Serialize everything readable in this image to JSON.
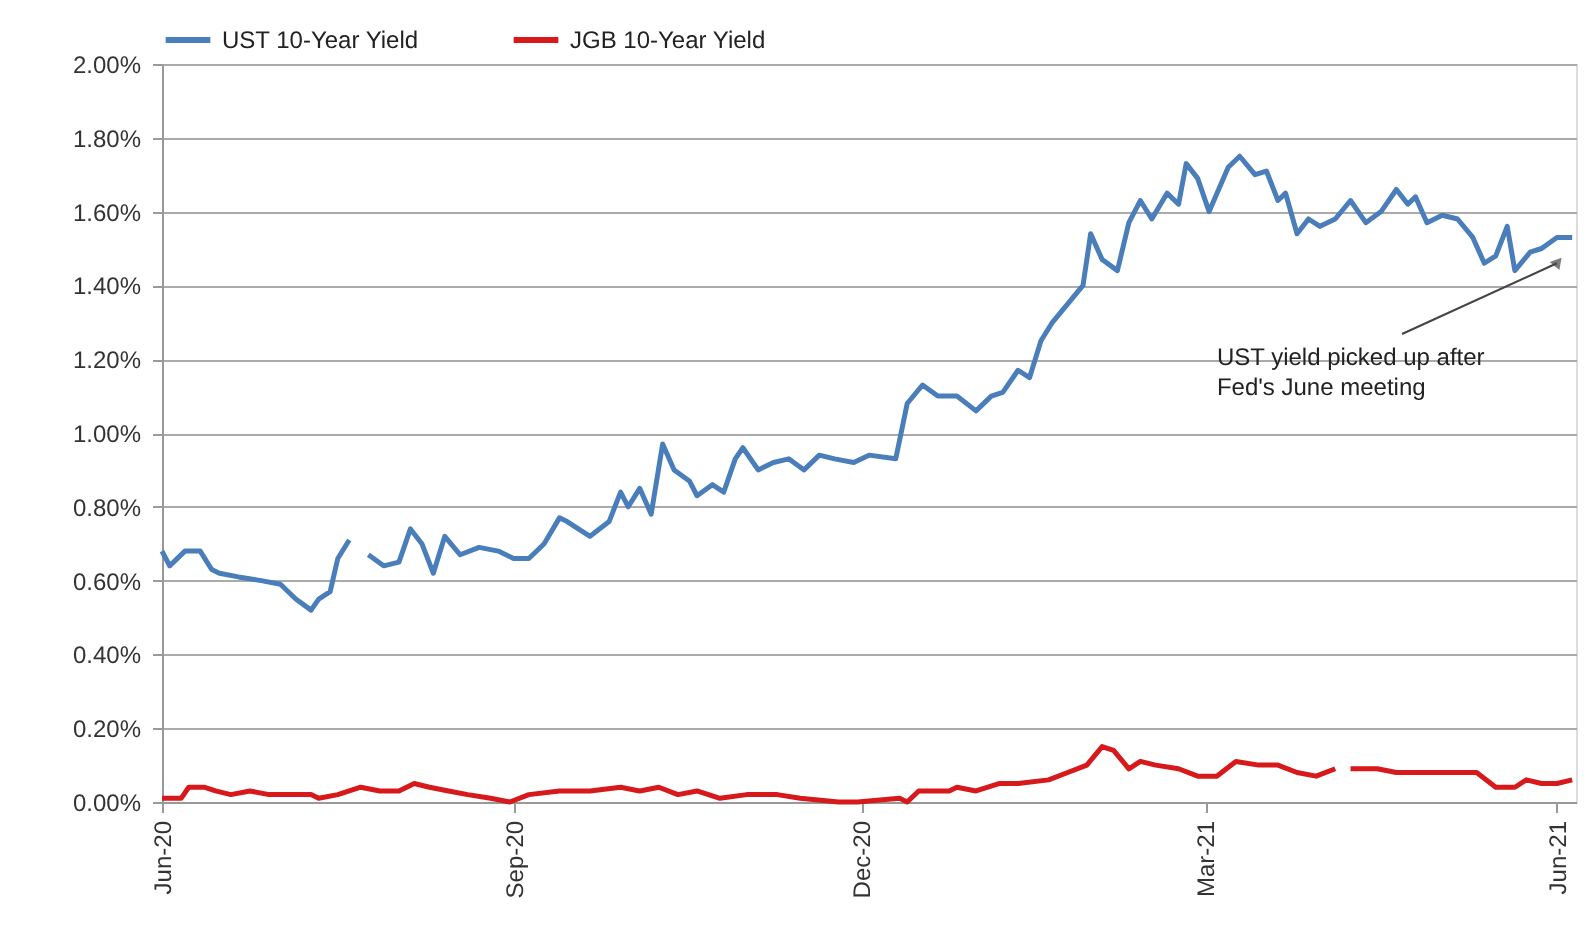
{
  "chart_data": {
    "type": "line",
    "x": [
      "2020-06-01",
      "2020-06-03",
      "2020-06-07",
      "2020-06-11",
      "2020-06-14",
      "2020-06-16",
      "2020-06-21",
      "2020-06-27",
      "2020-07-02",
      "2020-07-06",
      "2020-07-10",
      "2020-07-12",
      "2020-07-15",
      "2020-07-17",
      "2020-07-20",
      "2020-07-23",
      "2020-07-25",
      "2020-07-29",
      "2020-08-02",
      "2020-08-05",
      "2020-08-08",
      "2020-08-11",
      "2020-08-14",
      "2020-08-18",
      "2020-08-23",
      "2020-08-28",
      "2020-09-01",
      "2020-09-05",
      "2020-09-09",
      "2020-09-13",
      "2020-09-15",
      "2020-09-21",
      "2020-09-26",
      "2020-09-29",
      "2020-10-01",
      "2020-10-04",
      "2020-10-07",
      "2020-10-10",
      "2020-10-13",
      "2020-10-17",
      "2020-10-19",
      "2020-10-23",
      "2020-10-26",
      "2020-10-29",
      "2020-10-31",
      "2020-11-04",
      "2020-11-08",
      "2020-11-12",
      "2020-11-16",
      "2020-11-20",
      "2020-11-24",
      "2020-11-29",
      "2020-12-03",
      "2020-12-10",
      "2020-12-13",
      "2020-12-17",
      "2020-12-21",
      "2020-12-26",
      "2020-12-31",
      "2021-01-04",
      "2021-01-07",
      "2021-01-11",
      "2021-01-14",
      "2021-01-17",
      "2021-01-20",
      "2021-01-24",
      "2021-01-28",
      "2021-01-30",
      "2021-02-02",
      "2021-02-06",
      "2021-02-09",
      "2021-02-12",
      "2021-02-15",
      "2021-02-19",
      "2021-02-22",
      "2021-02-24",
      "2021-02-27",
      "2021-03-02",
      "2021-03-07",
      "2021-03-10",
      "2021-03-14",
      "2021-03-17",
      "2021-03-20",
      "2021-03-22",
      "2021-03-25",
      "2021-03-28",
      "2021-03-31",
      "2021-04-04",
      "2021-04-08",
      "2021-04-12",
      "2021-04-16",
      "2021-04-20",
      "2021-04-23",
      "2021-04-25",
      "2021-04-28",
      "2021-05-02",
      "2021-05-06",
      "2021-05-10",
      "2021-05-13",
      "2021-05-16",
      "2021-05-19",
      "2021-05-21",
      "2021-05-25",
      "2021-05-28",
      "2021-06-01",
      "2021-06-05"
    ],
    "series": [
      {
        "name": "UST 10-Year Yield",
        "color": "#4a7ebb",
        "values": [
          0.68,
          0.64,
          0.68,
          0.68,
          0.63,
          0.62,
          0.61,
          0.6,
          0.59,
          0.55,
          0.52,
          0.55,
          0.57,
          0.66,
          0.71,
          null,
          0.67,
          0.64,
          0.65,
          0.74,
          0.7,
          0.62,
          0.72,
          0.67,
          0.69,
          0.68,
          0.66,
          0.66,
          0.7,
          0.77,
          0.76,
          0.72,
          0.76,
          0.84,
          0.8,
          0.85,
          0.78,
          0.97,
          0.9,
          0.87,
          0.83,
          0.86,
          0.84,
          0.93,
          0.96,
          0.9,
          0.92,
          0.93,
          0.9,
          0.94,
          0.93,
          0.92,
          0.94,
          0.93,
          1.08,
          1.13,
          1.1,
          1.1,
          1.06,
          1.1,
          1.11,
          1.17,
          1.15,
          1.25,
          1.3,
          1.35,
          1.4,
          1.54,
          1.47,
          1.44,
          1.57,
          1.63,
          1.58,
          1.65,
          1.62,
          1.73,
          1.69,
          1.6,
          1.72,
          1.75,
          1.7,
          1.71,
          1.63,
          1.65,
          1.54,
          1.58,
          1.56,
          1.58,
          1.63,
          1.57,
          1.6,
          1.66,
          1.62,
          1.64,
          1.57,
          1.59,
          1.58,
          1.53,
          1.46,
          1.48,
          1.56,
          1.44,
          1.49,
          1.5,
          1.53,
          1.53
        ]
      },
      {
        "name": "JGB 10-Year Yield",
        "color": "#d7191c",
        "x": [
          "2020-06-01",
          "2020-06-06",
          "2020-06-08",
          "2020-06-12",
          "2020-06-15",
          "2020-06-19",
          "2020-06-24",
          "2020-06-29",
          "2020-07-04",
          "2020-07-10",
          "2020-07-12",
          "2020-07-17",
          "2020-07-23",
          "2020-07-28",
          "2020-08-02",
          "2020-08-06",
          "2020-08-10",
          "2020-08-15",
          "2020-08-20",
          "2020-08-26",
          "2020-08-31",
          "2020-09-05",
          "2020-09-13",
          "2020-09-21",
          "2020-09-29",
          "2020-10-04",
          "2020-10-09",
          "2020-10-14",
          "2020-10-19",
          "2020-10-25",
          "2020-11-01",
          "2020-11-09",
          "2020-11-15",
          "2020-11-25",
          "2020-11-30",
          "2020-12-11",
          "2020-12-13",
          "2020-12-16",
          "2020-12-24",
          "2020-12-26",
          "2020-12-31",
          "2021-01-06",
          "2021-01-11",
          "2021-01-19",
          "2021-01-24",
          "2021-01-29",
          "2021-02-02",
          "2021-02-05",
          "2021-02-09",
          "2021-02-12",
          "2021-02-16",
          "2021-02-22",
          "2021-02-27",
          "2021-03-04",
          "2021-03-09",
          "2021-03-15",
          "2021-03-20",
          "2021-03-25",
          "2021-03-30",
          "2021-04-04",
          "2021-04-06",
          "2021-04-08",
          "2021-04-15",
          "2021-04-20",
          "2021-04-25",
          "2021-05-01",
          "2021-05-06",
          "2021-05-11",
          "2021-05-16",
          "2021-05-21",
          "2021-05-24",
          "2021-05-28",
          "2021-06-01",
          "2021-06-05"
        ],
        "values": [
          0.01,
          0.01,
          0.04,
          0.04,
          0.03,
          0.02,
          0.03,
          0.02,
          0.02,
          0.02,
          0.01,
          0.02,
          0.04,
          0.03,
          0.03,
          0.05,
          0.04,
          0.03,
          0.02,
          0.01,
          0.0,
          0.02,
          0.03,
          0.03,
          0.04,
          0.03,
          0.04,
          0.02,
          0.03,
          0.01,
          0.02,
          0.02,
          0.01,
          0.0,
          0.0,
          0.01,
          0.0,
          0.03,
          0.03,
          0.04,
          0.03,
          0.05,
          0.05,
          0.06,
          0.08,
          0.1,
          0.15,
          0.14,
          0.09,
          0.11,
          0.1,
          0.09,
          0.07,
          0.07,
          0.11,
          0.1,
          0.1,
          0.08,
          0.07,
          0.09,
          null,
          0.09,
          0.09,
          0.08,
          0.08,
          0.08,
          0.08,
          0.08,
          0.04,
          0.04,
          0.06,
          0.05,
          0.05,
          0.06
        ]
      }
    ],
    "xlim": [
      "2020-06-01",
      "2021-06-06"
    ],
    "xticks": [
      {
        "value": "2020-06-01",
        "label": "Jun-20"
      },
      {
        "value": "2020-09-01",
        "label": "Sep-20"
      },
      {
        "value": "2020-12-01",
        "label": "Dec-20"
      },
      {
        "value": "2021-03-01",
        "label": "Mar-21"
      },
      {
        "value": "2021-06-01",
        "label": "Jun-21"
      }
    ],
    "ylim": [
      0,
      2
    ],
    "yticks": [
      {
        "value": 0,
        "label": "0.00%"
      },
      {
        "value": 0.2,
        "label": "0.20%"
      },
      {
        "value": 0.4,
        "label": "0.40%"
      },
      {
        "value": 0.6,
        "label": "0.60%"
      },
      {
        "value": 0.8,
        "label": "0.80%"
      },
      {
        "value": 1.0,
        "label": "1.00%"
      },
      {
        "value": 1.2,
        "label": "1.20%"
      },
      {
        "value": 1.4,
        "label": "1.40%"
      },
      {
        "value": 1.6,
        "label": "1.60%"
      },
      {
        "value": 1.8,
        "label": "1.80%"
      },
      {
        "value": 2.0,
        "label": "2.00%"
      }
    ],
    "annotations": [
      {
        "text": "UST yield picked up after\nFed's June meeting",
        "x": "2021-06-01",
        "y": 1.46
      }
    ],
    "grid": "y",
    "legend": "top",
    "line_style": "solid",
    "marker": "none"
  }
}
